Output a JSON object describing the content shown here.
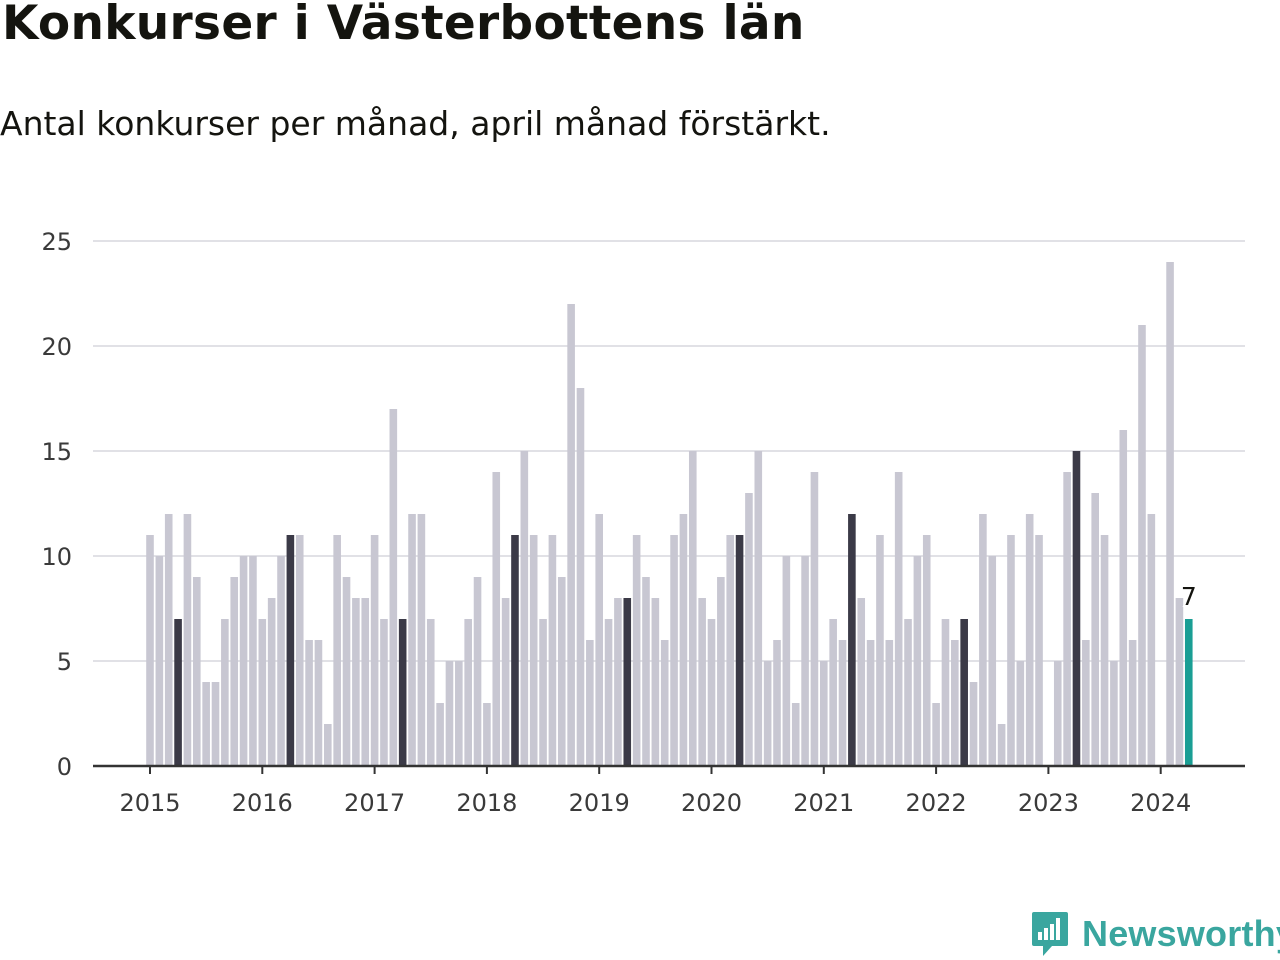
{
  "chart_data": {
    "type": "bar",
    "title": "Konkurser i Västerbottens län",
    "subtitle": "Antal konkurser per månad, april månad förstärkt.",
    "x_start": "2015-01",
    "y_ticks": [
      0,
      5,
      10,
      15,
      20,
      25
    ],
    "x_tick_labels": [
      "2015",
      "2016",
      "2017",
      "2018",
      "2019",
      "2020",
      "2021",
      "2022",
      "2023",
      "2024"
    ],
    "ylim": [
      0,
      25
    ],
    "grid": true,
    "values": [
      11,
      10,
      12,
      7,
      12,
      9,
      4,
      4,
      7,
      9,
      10,
      10,
      7,
      8,
      10,
      11,
      11,
      6,
      6,
      2,
      11,
      9,
      8,
      8,
      11,
      7,
      17,
      7,
      12,
      12,
      7,
      3,
      5,
      5,
      7,
      9,
      3,
      14,
      8,
      11,
      15,
      11,
      7,
      11,
      9,
      22,
      18,
      6,
      12,
      7,
      8,
      8,
      11,
      9,
      8,
      6,
      11,
      12,
      15,
      8,
      7,
      9,
      11,
      11,
      13,
      15,
      5,
      6,
      10,
      3,
      10,
      14,
      5,
      7,
      6,
      12,
      8,
      6,
      11,
      6,
      14,
      7,
      10,
      11,
      3,
      7,
      6,
      7,
      4,
      12,
      10,
      2,
      11,
      5,
      12,
      11,
      0,
      5,
      14,
      15,
      6,
      13,
      11,
      5,
      16,
      6,
      21,
      12,
      0,
      24,
      8,
      7
    ],
    "highlight_label": "7",
    "colors": {
      "default": "#c8c7d2",
      "april": "#3b3a47",
      "latest": "#1a9e94",
      "grid": "#e1e1e6",
      "axis": "#333333"
    }
  },
  "brand": {
    "logo_text": "Newsworthy",
    "logo_color": "#3aa69f"
  }
}
